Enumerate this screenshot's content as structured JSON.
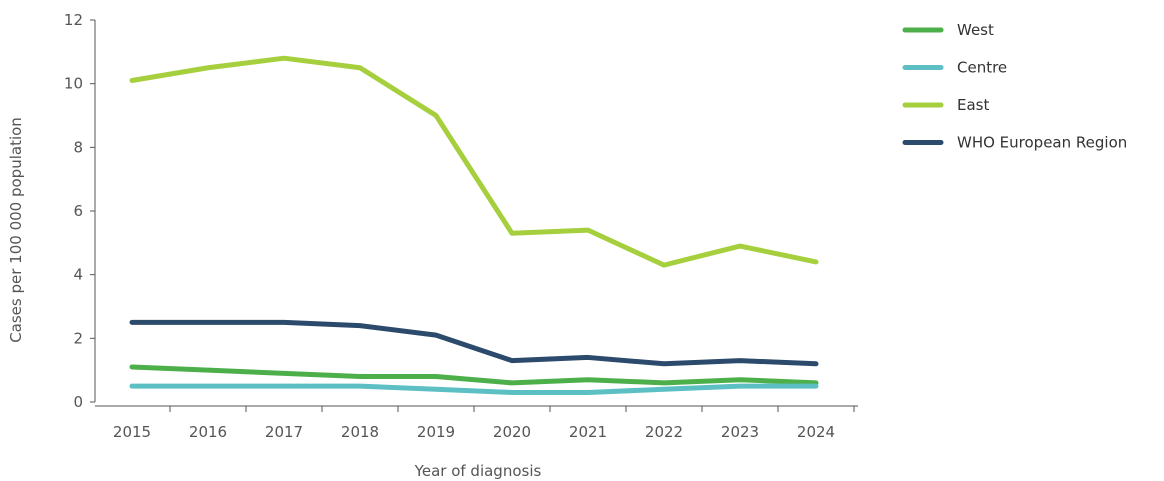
{
  "chart_data": {
    "type": "line",
    "xlabel": "Year of diagnosis",
    "ylabel": "Cases per 100 000 population",
    "categories": [
      "2015",
      "2016",
      "2017",
      "2018",
      "2019",
      "2020",
      "2021",
      "2022",
      "2023",
      "2024"
    ],
    "ylim": [
      0,
      12
    ],
    "yticks": [
      0,
      2,
      4,
      6,
      8,
      10,
      12
    ],
    "grid": false,
    "legend_position": "right",
    "series": [
      {
        "name": "West",
        "color": "#4daf4a",
        "values": [
          1.1,
          1.0,
          0.9,
          0.8,
          0.8,
          0.6,
          0.7,
          0.6,
          0.7,
          0.6
        ]
      },
      {
        "name": "Centre",
        "color": "#5bbfc4",
        "values": [
          0.5,
          0.5,
          0.5,
          0.5,
          0.4,
          0.3,
          0.3,
          0.4,
          0.5,
          0.5
        ]
      },
      {
        "name": "East",
        "color": "#a6cf3e",
        "values": [
          10.1,
          10.5,
          10.8,
          10.5,
          9.0,
          5.3,
          5.4,
          4.3,
          4.9,
          4.4
        ]
      },
      {
        "name": "WHO European Region",
        "color": "#2c4a6b",
        "values": [
          2.5,
          2.5,
          2.5,
          2.4,
          2.1,
          1.3,
          1.4,
          1.2,
          1.3,
          1.2
        ]
      }
    ]
  }
}
